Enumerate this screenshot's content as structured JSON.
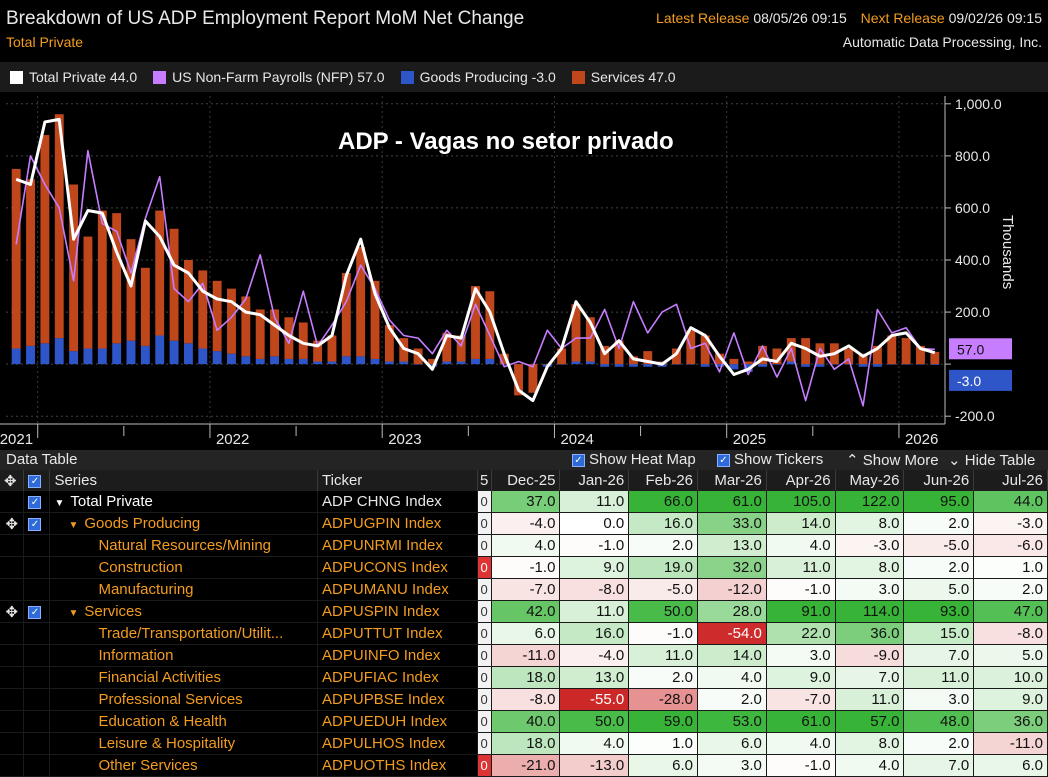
{
  "header": {
    "title": "Breakdown of US ADP Employment Report MoM Net Change",
    "subtitle": "Total Private",
    "latest_release_label": "Latest Release",
    "latest_release_value": "08/05/26 09:15",
    "next_release_label": "Next Release",
    "next_release_value": "09/02/26 09:15",
    "source": "Automatic Data Processing, Inc."
  },
  "legend": [
    {
      "label": "Total Private 44.0",
      "color": "#ffffff"
    },
    {
      "label": "US Non-Farm Payrolls (NFP) 57.0",
      "color": "#c77dff"
    },
    {
      "label": "Goods Producing -3.0",
      "color": "#2f56c9"
    },
    {
      "label": "Services 47.0",
      "color": "#c0461c"
    }
  ],
  "overlay_title": "ADP - Vagas no setor privado",
  "chart_data": {
    "type": "bar",
    "y_unit": "Thousands",
    "ylim": [
      -230,
      1030
    ],
    "y_ticks": [
      1000,
      800,
      600,
      400,
      200,
      0,
      -200
    ],
    "y_tick_labels": [
      "1,000.0",
      "800.0",
      "600.0",
      "400.0",
      "200.0",
      "",
      "-200.0"
    ],
    "x_labels": [
      "2021",
      "2022",
      "2023",
      "2024",
      "2025",
      "2026"
    ],
    "last_value_labels": [
      {
        "label": "57.0",
        "color": "#c77dff"
      },
      {
        "label": "-3.0",
        "color": "#2f56c9"
      }
    ],
    "series": [
      {
        "name": "Services",
        "kind": "bar",
        "color": "#c0461c",
        "values": [
          690,
          640,
          800,
          860,
          640,
          430,
          530,
          500,
          390,
          300,
          480,
          430,
          320,
          300,
          270,
          250,
          230,
          190,
          180,
          160,
          140,
          80,
          100,
          320,
          420,
          300,
          140,
          90,
          60,
          20,
          110,
          100,
          280,
          260,
          40,
          -120,
          -110,
          0,
          60,
          220,
          170,
          70,
          90,
          30,
          50,
          10,
          60,
          130,
          110,
          40,
          20,
          10,
          70,
          60,
          90,
          100,
          80,
          80,
          60,
          40,
          70,
          110,
          100,
          70,
          47
        ]
      },
      {
        "name": "Goods Producing",
        "kind": "bar",
        "color": "#2f56c9",
        "values": [
          60,
          70,
          80,
          100,
          50,
          60,
          60,
          80,
          90,
          70,
          110,
          90,
          80,
          60,
          50,
          40,
          30,
          20,
          30,
          20,
          20,
          10,
          10,
          30,
          30,
          20,
          10,
          10,
          0,
          -10,
          10,
          10,
          20,
          20,
          0,
          -20,
          -20,
          -10,
          0,
          10,
          10,
          -10,
          -10,
          -10,
          -10,
          -10,
          0,
          0,
          -10,
          -10,
          -20,
          -30,
          -10,
          0,
          10,
          -10,
          -10,
          0,
          0,
          -10,
          -10,
          0,
          0,
          0,
          -3
        ]
      },
      {
        "name": "Total Private",
        "kind": "line",
        "color": "#ffffff",
        "values": [
          710,
          690,
          930,
          940,
          480,
          590,
          580,
          430,
          300,
          550,
          490,
          380,
          350,
          280,
          250,
          240,
          200,
          190,
          150,
          110,
          80,
          70,
          110,
          340,
          480,
          270,
          140,
          60,
          40,
          -20,
          110,
          100,
          290,
          200,
          40,
          -100,
          -140,
          -10,
          60,
          240,
          160,
          40,
          90,
          20,
          10,
          0,
          40,
          140,
          110,
          30,
          -40,
          -20,
          20,
          10,
          80,
          60,
          30,
          40,
          70,
          30,
          60,
          110,
          120,
          60,
          44
        ]
      },
      {
        "name": "US Non-Farm Payrolls (NFP)",
        "kind": "line",
        "color": "#c77dff",
        "values": [
          460,
          800,
          690,
          600,
          320,
          820,
          540,
          510,
          350,
          560,
          720,
          290,
          240,
          310,
          130,
          180,
          250,
          420,
          180,
          80,
          280,
          70,
          150,
          240,
          380,
          290,
          170,
          110,
          100,
          40,
          130,
          70,
          230,
          110,
          -10,
          10,
          -10,
          130,
          60,
          100,
          100,
          210,
          60,
          240,
          120,
          200,
          230,
          60,
          80,
          -30,
          120,
          -40,
          70,
          -50,
          60,
          -140,
          60,
          -20,
          20,
          -160,
          210,
          120,
          140,
          60,
          57
        ]
      }
    ]
  },
  "data_table": {
    "title": "Data Table",
    "buttons": [
      "Show Heat Map",
      "Show Tickers",
      "Show More",
      "Hide Table"
    ],
    "columns": {
      "series": "Series",
      "ticker": "Ticker",
      "n": "5",
      "months": [
        "Dec-25",
        "Jan-26",
        "Feb-26",
        "Mar-26",
        "Apr-26",
        "May-26",
        "Jun-26",
        "Jul-26"
      ]
    },
    "rows": [
      {
        "name": "Total Private",
        "level": 0,
        "expander": "▼",
        "checked": true,
        "target": false,
        "ticker": "ADP CHNG Index",
        "n": "0",
        "values": [
          "37.0",
          "11.0",
          "66.0",
          "61.0",
          "105.0",
          "122.0",
          "95.0",
          "44.0"
        ]
      },
      {
        "name": "Goods Producing",
        "level": 1,
        "expander": "▼",
        "checked": true,
        "target": true,
        "ticker": "ADPUGPIN Index",
        "n": "0",
        "values": [
          "-4.0",
          "0.0",
          "16.0",
          "33.0",
          "14.0",
          "8.0",
          "2.0",
          "-3.0"
        ]
      },
      {
        "name": "Natural Resources/Mining",
        "level": 2,
        "expander": "",
        "checked": false,
        "target": false,
        "ticker": "ADPUNRMI Index",
        "n": "0",
        "values": [
          "4.0",
          "-1.0",
          "2.0",
          "13.0",
          "4.0",
          "-3.0",
          "-5.0",
          "-6.0"
        ]
      },
      {
        "name": "Construction",
        "level": 2,
        "expander": "",
        "checked": false,
        "target": false,
        "ticker": "ADPUCONS Index",
        "n": "0",
        "values": [
          "-1.0",
          "9.0",
          "19.0",
          "32.0",
          "11.0",
          "8.0",
          "2.0",
          "1.0"
        ]
      },
      {
        "name": "Manufacturing",
        "level": 2,
        "expander": "",
        "checked": false,
        "target": false,
        "ticker": "ADPUMANU Index",
        "n": "0",
        "values": [
          "-7.0",
          "-8.0",
          "-5.0",
          "-12.0",
          "-1.0",
          "3.0",
          "5.0",
          "2.0"
        ]
      },
      {
        "name": "Services",
        "level": 1,
        "expander": "▼",
        "checked": true,
        "target": true,
        "ticker": "ADPUSPIN Index",
        "n": "0",
        "values": [
          "42.0",
          "11.0",
          "50.0",
          "28.0",
          "91.0",
          "114.0",
          "93.0",
          "47.0"
        ]
      },
      {
        "name": "Trade/Transportation/Utilit...",
        "level": 2,
        "expander": "",
        "checked": false,
        "target": false,
        "ticker": "ADPUTTUT Index",
        "n": "0",
        "values": [
          "6.0",
          "16.0",
          "-1.0",
          "-54.0",
          "22.0",
          "36.0",
          "15.0",
          "-8.0"
        ]
      },
      {
        "name": "Information",
        "level": 2,
        "expander": "",
        "checked": false,
        "target": false,
        "ticker": "ADPUINFO Index",
        "n": "0",
        "values": [
          "-11.0",
          "-4.0",
          "11.0",
          "14.0",
          "3.0",
          "-9.0",
          "7.0",
          "5.0"
        ]
      },
      {
        "name": "Financial Activities",
        "level": 2,
        "expander": "",
        "checked": false,
        "target": false,
        "ticker": "ADPUFIAC Index",
        "n": "0",
        "values": [
          "18.0",
          "13.0",
          "2.0",
          "4.0",
          "9.0",
          "7.0",
          "11.0",
          "10.0"
        ]
      },
      {
        "name": "Professional Services",
        "level": 2,
        "expander": "",
        "checked": false,
        "target": false,
        "ticker": "ADPUPBSE Index",
        "n": "0",
        "values": [
          "-8.0",
          "-55.0",
          "-28.0",
          "2.0",
          "-7.0",
          "11.0",
          "3.0",
          "9.0"
        ]
      },
      {
        "name": "Education & Health",
        "level": 2,
        "expander": "",
        "checked": false,
        "target": false,
        "ticker": "ADPUEDUH Index",
        "n": "0",
        "values": [
          "40.0",
          "50.0",
          "59.0",
          "53.0",
          "61.0",
          "57.0",
          "48.0",
          "36.0"
        ]
      },
      {
        "name": "Leisure & Hospitality",
        "level": 2,
        "expander": "",
        "checked": false,
        "target": false,
        "ticker": "ADPULHOS Index",
        "n": "0",
        "values": [
          "18.0",
          "4.0",
          "1.0",
          "6.0",
          "4.0",
          "8.0",
          "2.0",
          "-11.0"
        ]
      },
      {
        "name": "Other Services",
        "level": 2,
        "expander": "",
        "checked": false,
        "target": false,
        "ticker": "ADPUOTHS Index",
        "n": "0",
        "values": [
          "-21.0",
          "-13.0",
          "6.0",
          "3.0",
          "-1.0",
          "4.0",
          "7.0",
          "6.0"
        ]
      }
    ]
  }
}
